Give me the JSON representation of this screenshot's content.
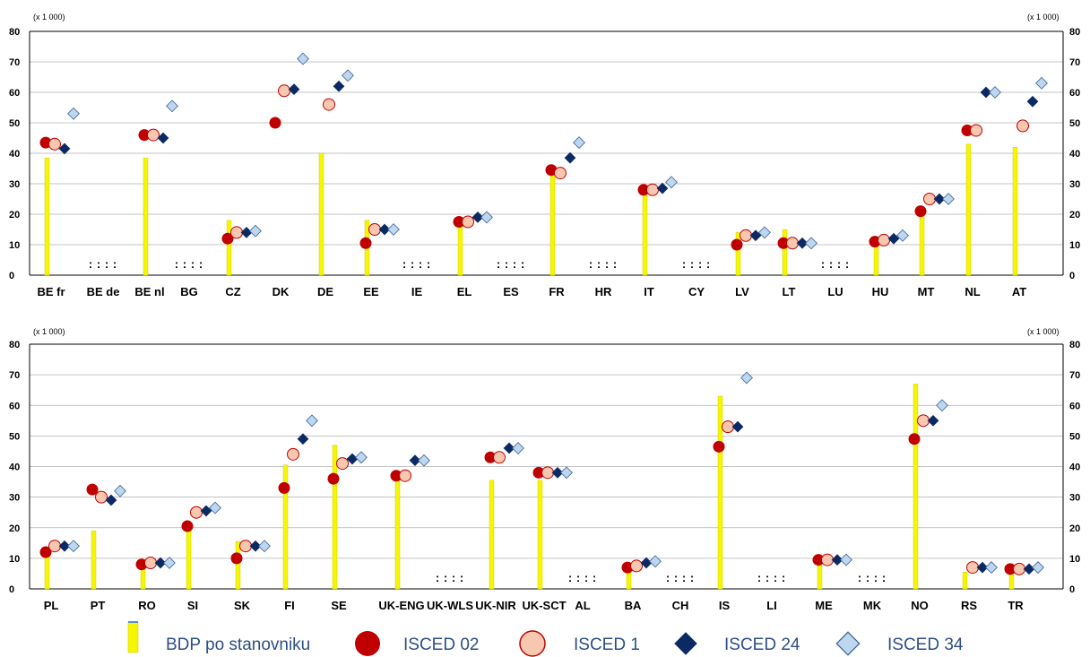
{
  "colors": {
    "bdp": "#f6f600",
    "bdp_stroke": "#c9c900",
    "isced02": "#c00000",
    "isced1_fill": "#f8c7b0",
    "isced1_stroke": "#c00000",
    "isced24": "#0b2a63",
    "isced34_fill": "#bdd7ee",
    "isced34_stroke": "#3a5f9a",
    "grid": "#b0b0b0"
  },
  "legend": {
    "bdp": "BDP po stanovniku",
    "isced02": "ISCED 02",
    "isced1": "ISCED 1",
    "isced24": "ISCED 24",
    "isced34": "ISCED 34"
  },
  "na_marker": ":",
  "chart_data": [
    {
      "type": "bar",
      "unit_label": "(x 1 000)",
      "ylim": [
        0,
        80
      ],
      "yticks": [
        0,
        10,
        20,
        30,
        40,
        50,
        60,
        70,
        80
      ],
      "grid": true,
      "legend_position": "bottom",
      "categories": [
        "BE fr",
        "BE de",
        "BE nl",
        "BG",
        "CZ",
        "DK",
        "DE",
        "EE",
        "IE",
        "EL",
        "ES",
        "FR",
        "HR",
        "IT",
        "CY",
        "LV",
        "LT",
        "LU",
        "HU",
        "MT",
        "NL",
        "AT"
      ],
      "not_available": [
        "BE de",
        "BG",
        "IE",
        "ES",
        "HR",
        "CY",
        "LU"
      ],
      "series": [
        {
          "name": "BDP po stanovniku",
          "kind": "bar",
          "values": [
            38.5,
            null,
            38.5,
            null,
            18,
            null,
            40,
            18,
            null,
            17,
            null,
            33,
            null,
            27,
            null,
            14,
            15,
            null,
            12,
            21,
            43,
            42
          ]
        },
        {
          "name": "ISCED 02",
          "kind": "marker",
          "values": [
            43.5,
            null,
            46,
            null,
            12,
            50,
            null,
            10.5,
            null,
            17.5,
            null,
            34.5,
            null,
            28,
            null,
            10,
            10.5,
            null,
            11,
            21,
            47.5,
            null
          ]
        },
        {
          "name": "ISCED 1",
          "kind": "marker",
          "values": [
            43,
            null,
            46,
            null,
            14,
            60.5,
            56,
            15,
            null,
            17.5,
            null,
            33.5,
            null,
            28,
            null,
            13,
            10.5,
            null,
            11.5,
            25,
            47.5,
            49
          ]
        },
        {
          "name": "ISCED 24",
          "kind": "marker",
          "values": [
            41.5,
            null,
            45,
            null,
            14,
            61,
            62,
            15,
            null,
            19,
            null,
            38.5,
            null,
            28.5,
            null,
            13,
            10.5,
            null,
            12,
            25,
            60,
            57
          ]
        },
        {
          "name": "ISCED 34",
          "kind": "marker",
          "values": [
            53,
            null,
            55.5,
            null,
            14.5,
            71,
            65.5,
            15,
            null,
            19,
            null,
            43.5,
            null,
            30.5,
            null,
            14,
            10.5,
            null,
            13,
            25,
            60,
            63
          ]
        }
      ]
    },
    {
      "type": "bar",
      "unit_label": "(x 1 000)",
      "ylim": [
        0,
        80
      ],
      "yticks": [
        0,
        10,
        20,
        30,
        40,
        50,
        60,
        70,
        80
      ],
      "grid": true,
      "legend_position": "bottom",
      "categories": [
        "PL",
        "PT",
        "RO",
        "SI",
        "SK",
        "FI",
        "SE",
        "UK-ENG",
        "UK-WLS",
        "UK-NIR",
        "UK-SCT",
        "AL",
        "BA",
        "CH",
        "IS",
        "LI",
        "ME",
        "MK",
        "NO",
        "RS",
        "TR"
      ],
      "not_available": [
        "UK-WLS",
        "AL",
        "CH",
        "LI",
        "MK"
      ],
      "series": [
        {
          "name": "BDP po stanovniku",
          "kind": "bar",
          "values": [
            12,
            19,
            8,
            20,
            15.5,
            40.5,
            47,
            37,
            null,
            35.5,
            35.5,
            null,
            7,
            null,
            63,
            null,
            9,
            null,
            67,
            5.5,
            7
          ]
        },
        {
          "name": "ISCED 02",
          "kind": "marker",
          "values": [
            12,
            32.5,
            8,
            20.5,
            10,
            33,
            36,
            37,
            null,
            43,
            38,
            null,
            7,
            null,
            46.5,
            null,
            9.5,
            null,
            49,
            null,
            6.5
          ]
        },
        {
          "name": "ISCED 1",
          "kind": "marker",
          "values": [
            14,
            30,
            8.5,
            25,
            14,
            44,
            41,
            37,
            null,
            43,
            38,
            null,
            7.5,
            null,
            53,
            null,
            9.5,
            null,
            55,
            7,
            6.5
          ]
        },
        {
          "name": "ISCED 24",
          "kind": "marker",
          "values": [
            14,
            29,
            8.5,
            25.5,
            14,
            49,
            42.5,
            42,
            null,
            46,
            38,
            null,
            8.5,
            null,
            53,
            null,
            9.5,
            null,
            55,
            7,
            6.5
          ]
        },
        {
          "name": "ISCED 34",
          "kind": "marker",
          "values": [
            14,
            32,
            8.5,
            26.5,
            14,
            55,
            43,
            42,
            null,
            46,
            38,
            null,
            9,
            null,
            69,
            null,
            9.5,
            null,
            60,
            7,
            7
          ]
        }
      ]
    }
  ]
}
